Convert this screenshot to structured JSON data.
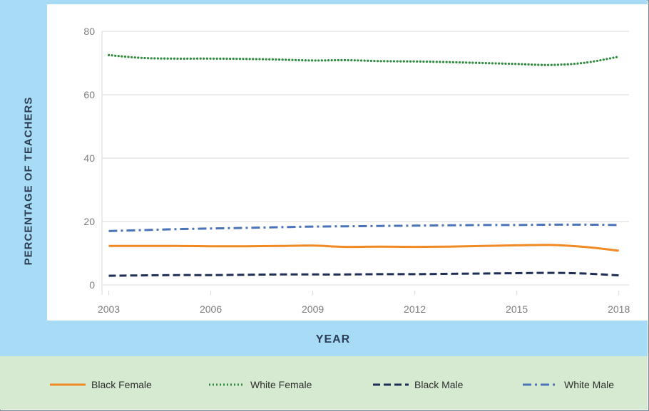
{
  "chart_data": {
    "type": "line",
    "title": "",
    "xlabel": "YEAR",
    "ylabel": "PERCENTAGE OF TEACHERS",
    "x": [
      2003,
      2004,
      2005,
      2006,
      2007,
      2008,
      2009,
      2010,
      2011,
      2012,
      2013,
      2014,
      2015,
      2016,
      2017,
      2018
    ],
    "xticks": [
      "2003",
      "2006",
      "2009",
      "2012",
      "2015",
      "2018"
    ],
    "yticks": [
      "0",
      "20",
      "40",
      "60",
      "80"
    ],
    "xlim": [
      2002.8,
      2018.3
    ],
    "ylim": [
      0,
      80
    ],
    "grid": true,
    "legend_position": "bottom",
    "series": [
      {
        "name": "Black Female",
        "color": "#f08a24",
        "dash": "solid",
        "values": [
          12.3,
          12.3,
          12.3,
          12.2,
          12.2,
          12.3,
          12.4,
          12.0,
          12.1,
          12.0,
          12.1,
          12.3,
          12.5,
          12.6,
          12.0,
          10.8
        ]
      },
      {
        "name": "White Female",
        "color": "#2e8b3e",
        "dash": "dotted",
        "values": [
          72.5,
          71.6,
          71.4,
          71.4,
          71.3,
          71.1,
          70.8,
          70.9,
          70.6,
          70.5,
          70.3,
          70.0,
          69.7,
          69.4,
          70.1,
          72.0
        ]
      },
      {
        "name": "Black Male",
        "color": "#1f2e54",
        "dash": "dashed",
        "values": [
          2.9,
          3.0,
          3.1,
          3.1,
          3.2,
          3.3,
          3.3,
          3.3,
          3.4,
          3.4,
          3.5,
          3.6,
          3.7,
          3.8,
          3.6,
          3.0
        ]
      },
      {
        "name": "White Male",
        "color": "#4a73b8",
        "dash": "dashdot",
        "values": [
          17.0,
          17.3,
          17.6,
          17.8,
          18.0,
          18.2,
          18.4,
          18.5,
          18.6,
          18.7,
          18.8,
          18.9,
          18.9,
          19.0,
          19.0,
          18.9
        ]
      }
    ]
  }
}
